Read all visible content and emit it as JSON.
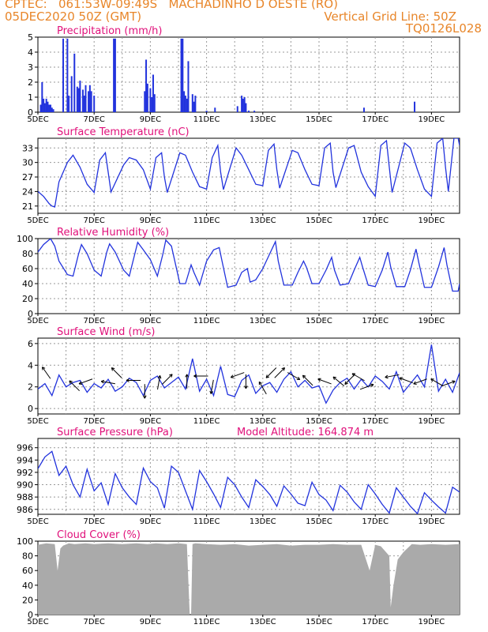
{
  "header": {
    "line1": "CPTEC:   061:53W-09:49S   MACHADINHO D OESTE (RO)",
    "line2": "05DEC2020 50Z (GMT)",
    "grid_note": "Vertical Grid Line: 50Z",
    "model_id": "TQ0126L028",
    "model_altitude": "Model Altitude: 164.874 m"
  },
  "colors": {
    "header": "#e8862a",
    "panel_title": "#e0107a",
    "series": "#2233dd",
    "cloud_fill": "#aaaaaa",
    "grid": "#999999"
  },
  "x_axis": {
    "ticks": [
      "5DEC",
      "7DEC",
      "9DEC",
      "11DEC",
      "13DEC",
      "15DEC",
      "17DEC",
      "19DEC"
    ],
    "day_range": [
      5,
      20
    ]
  },
  "chart_data": [
    {
      "type": "bar",
      "title": "Precipitation (mm/h)",
      "ylim": [
        0,
        5
      ],
      "yticks": [
        "0",
        "1",
        "2",
        "3",
        "4",
        "5"
      ],
      "x_days": [
        5.1,
        5.15,
        5.2,
        5.25,
        5.3,
        5.35,
        5.4,
        5.45,
        5.5,
        5.55,
        5.9,
        6.05,
        6.1,
        6.2,
        6.3,
        6.4,
        6.45,
        6.5,
        6.6,
        6.65,
        6.7,
        6.8,
        6.85,
        6.9,
        7.0,
        7.7,
        7.75,
        8.8,
        8.85,
        8.9,
        9.0,
        9.05,
        9.1,
        9.15,
        10.1,
        10.15,
        10.2,
        10.25,
        10.3,
        10.35,
        10.5,
        10.55,
        10.6,
        11.0,
        11.3,
        12.1,
        12.25,
        12.3,
        12.35,
        12.4,
        12.5,
        12.7,
        16.6,
        18.4
      ],
      "values": [
        0.5,
        2.0,
        0.9,
        0.6,
        0.9,
        0.7,
        0.5,
        0.5,
        0.3,
        0.2,
        4.9,
        4.9,
        1.1,
        2.4,
        3.9,
        1.7,
        1.6,
        2.1,
        1.5,
        1.1,
        1.8,
        1.4,
        1.8,
        1.4,
        1.1,
        4.9,
        4.9,
        1.4,
        3.5,
        1.9,
        1.6,
        1.0,
        2.5,
        1.2,
        4.9,
        4.9,
        1.4,
        1.1,
        0.9,
        3.4,
        1.2,
        0.7,
        1.1,
        0.1,
        0.3,
        0.4,
        1.1,
        0.9,
        1.0,
        0.6,
        0.1,
        0.1,
        0.3,
        0.7
      ]
    },
    {
      "type": "line",
      "title": "Surface Temperature (nC)",
      "ylim": [
        19.5,
        35
      ],
      "yticks": [
        "21",
        "24",
        "27",
        "30",
        "33"
      ],
      "x_days": [
        5.0,
        5.2,
        5.4,
        5.5,
        5.6,
        5.75,
        6.05,
        6.25,
        6.5,
        6.75,
        7.0,
        7.2,
        7.4,
        7.5,
        7.6,
        8.05,
        8.25,
        8.5,
        8.75,
        9.0,
        9.2,
        9.4,
        9.5,
        9.6,
        10.05,
        10.25,
        10.5,
        10.75,
        11.0,
        11.2,
        11.4,
        11.5,
        11.6,
        12.05,
        12.25,
        12.5,
        12.75,
        13.0,
        13.2,
        13.4,
        13.5,
        13.6,
        14.05,
        14.25,
        14.5,
        14.75,
        15.0,
        15.2,
        15.4,
        15.5,
        15.6,
        16.05,
        16.25,
        16.5,
        16.75,
        17.0,
        17.2,
        17.4,
        17.5,
        17.6,
        18.05,
        18.25,
        18.5,
        18.75,
        19.0,
        19.2,
        19.4,
        19.5,
        19.6,
        19.8,
        19.95,
        20.0
      ],
      "values": [
        24.0,
        23.0,
        21.5,
        21.0,
        20.8,
        26.0,
        30.0,
        31.5,
        29.0,
        25.5,
        23.8,
        30.5,
        32.0,
        28.0,
        23.9,
        29.5,
        31.0,
        30.5,
        28.5,
        24.5,
        31.0,
        32.0,
        27.0,
        23.8,
        32.0,
        31.5,
        28.0,
        25.0,
        24.5,
        31.0,
        33.5,
        28.0,
        24.4,
        33.0,
        31.5,
        28.5,
        25.5,
        25.2,
        32.5,
        33.8,
        28.5,
        24.7,
        32.5,
        32.0,
        28.5,
        25.5,
        25.2,
        33.0,
        34.0,
        28.0,
        24.8,
        33.0,
        33.5,
        28.0,
        25.0,
        23.0,
        33.5,
        34.5,
        29.0,
        23.8,
        34.0,
        33.0,
        28.5,
        24.5,
        23.0,
        34.0,
        35.0,
        29.0,
        24.0,
        35.0,
        35.0,
        33.5
      ]
    },
    {
      "type": "line",
      "title": "Relative Humidity (%)",
      "ylim": [
        0,
        100
      ],
      "yticks": [
        "0",
        "20",
        "40",
        "60",
        "80",
        "100"
      ],
      "x_days": [
        5.0,
        5.2,
        5.45,
        5.6,
        5.75,
        6.05,
        6.25,
        6.45,
        6.55,
        6.75,
        7.0,
        7.25,
        7.45,
        7.55,
        7.75,
        8.05,
        8.25,
        8.45,
        8.55,
        8.75,
        9.0,
        9.25,
        9.45,
        9.55,
        9.75,
        10.05,
        10.25,
        10.45,
        10.55,
        10.75,
        11.0,
        11.25,
        11.45,
        11.55,
        11.75,
        12.05,
        12.25,
        12.45,
        12.55,
        12.75,
        13.0,
        13.25,
        13.45,
        13.55,
        13.75,
        14.05,
        14.25,
        14.45,
        14.55,
        14.75,
        15.0,
        15.25,
        15.45,
        15.55,
        15.75,
        16.05,
        16.25,
        16.45,
        16.55,
        16.75,
        17.0,
        17.25,
        17.45,
        17.55,
        17.75,
        18.05,
        18.25,
        18.45,
        18.55,
        18.75,
        19.0,
        19.25,
        19.45,
        19.55,
        19.75,
        19.95,
        20.0
      ],
      "values": [
        82,
        92,
        100,
        90,
        70,
        52,
        50,
        80,
        92,
        80,
        58,
        50,
        82,
        93,
        82,
        58,
        50,
        80,
        95,
        85,
        72,
        50,
        80,
        98,
        90,
        40,
        40,
        65,
        55,
        38,
        70,
        85,
        88,
        70,
        35,
        38,
        55,
        60,
        42,
        45,
        60,
        80,
        96,
        70,
        38,
        38,
        55,
        70,
        62,
        40,
        40,
        58,
        75,
        58,
        38,
        40,
        58,
        75,
        62,
        38,
        36,
        58,
        82,
        62,
        36,
        36,
        58,
        86,
        68,
        35,
        35,
        62,
        88,
        65,
        30,
        30,
        40
      ]
    },
    {
      "type": "line",
      "title": "Surface Wind (m/s)",
      "ylim": [
        -0.5,
        6.5
      ],
      "yticks": [
        "0",
        "2",
        "4",
        "6"
      ],
      "x_days": [
        5.0,
        5.25,
        5.5,
        5.75,
        6.0,
        6.25,
        6.5,
        6.75,
        7.0,
        7.25,
        7.5,
        7.75,
        8.0,
        8.25,
        8.5,
        8.75,
        9.0,
        9.25,
        9.5,
        9.75,
        10.0,
        10.25,
        10.5,
        10.75,
        11.0,
        11.25,
        11.5,
        11.75,
        12.0,
        12.25,
        12.5,
        12.75,
        13.0,
        13.25,
        13.5,
        13.75,
        14.0,
        14.25,
        14.5,
        14.75,
        15.0,
        15.25,
        15.5,
        15.75,
        16.0,
        16.25,
        16.5,
        16.75,
        17.0,
        17.25,
        17.5,
        17.75,
        18.0,
        18.25,
        18.5,
        18.75,
        19.0,
        19.25,
        19.5,
        19.75,
        20.0
      ],
      "values": [
        1.8,
        2.3,
        1.2,
        3.1,
        2.0,
        2.4,
        2.6,
        1.5,
        2.3,
        1.9,
        2.7,
        1.6,
        2.0,
        2.8,
        2.4,
        1.2,
        2.6,
        3.0,
        1.9,
        2.4,
        2.9,
        1.8,
        4.6,
        1.6,
        2.7,
        1.2,
        3.9,
        1.3,
        1.1,
        2.6,
        3.1,
        1.4,
        2.1,
        2.4,
        1.5,
        2.7,
        3.4,
        2.0,
        2.6,
        1.9,
        2.1,
        0.5,
        1.7,
        2.4,
        2.8,
        1.8,
        2.7,
        2.0,
        3.0,
        2.5,
        1.8,
        3.4,
        1.5,
        2.3,
        3.1,
        2.0,
        5.9,
        1.6,
        2.7,
        1.5,
        3.3
      ],
      "arrows": [
        {
          "day": 5.3,
          "speed": 3.3,
          "dir": 125
        },
        {
          "day": 6.3,
          "speed": 2.1,
          "dir": 135
        },
        {
          "day": 6.7,
          "speed": 2.5,
          "dir": 200
        },
        {
          "day": 7.5,
          "speed": 2.4,
          "dir": 170
        },
        {
          "day": 7.8,
          "speed": 3.3,
          "dir": 135
        },
        {
          "day": 8.4,
          "speed": 2.6,
          "dir": 180
        },
        {
          "day": 8.8,
          "speed": 1.6,
          "dir": 270
        },
        {
          "day": 9.3,
          "speed": 2.4,
          "dir": 80
        },
        {
          "day": 9.6,
          "speed": 2.7,
          "dir": 45
        },
        {
          "day": 10.3,
          "speed": 2.5,
          "dir": 90
        },
        {
          "day": 10.8,
          "speed": 3.0,
          "dir": 180
        },
        {
          "day": 11.2,
          "speed": 2.0,
          "dir": 260
        },
        {
          "day": 12.1,
          "speed": 3.1,
          "dir": 200
        },
        {
          "day": 12.4,
          "speed": 2.5,
          "dir": 270
        },
        {
          "day": 13.0,
          "speed": 1.9,
          "dir": 120
        },
        {
          "day": 13.3,
          "speed": 3.3,
          "dir": 225
        },
        {
          "day": 13.6,
          "speed": 3.3,
          "dir": 45
        },
        {
          "day": 14.1,
          "speed": 3.0,
          "dir": 330
        },
        {
          "day": 14.6,
          "speed": 2.6,
          "dir": 135
        },
        {
          "day": 15.2,
          "speed": 2.5,
          "dir": 160
        },
        {
          "day": 15.7,
          "speed": 2.5,
          "dir": 140
        },
        {
          "day": 16.1,
          "speed": 2.7,
          "dir": 225
        },
        {
          "day": 16.4,
          "speed": 2.9,
          "dir": 150
        },
        {
          "day": 16.7,
          "speed": 2.0,
          "dir": 20
        },
        {
          "day": 17.6,
          "speed": 3.0,
          "dir": 190
        },
        {
          "day": 18.1,
          "speed": 2.6,
          "dir": 160
        },
        {
          "day": 18.6,
          "speed": 2.5,
          "dir": 200
        },
        {
          "day": 19.2,
          "speed": 2.4,
          "dir": 150
        },
        {
          "day": 19.6,
          "speed": 2.3,
          "dir": 20
        }
      ]
    },
    {
      "type": "line",
      "title": "Surface Pressure (hPa)",
      "ylim": [
        985.2,
        997.5
      ],
      "yticks": [
        "986",
        "988",
        "990",
        "992",
        "994",
        "996"
      ],
      "x_days": [
        5.0,
        5.25,
        5.5,
        5.75,
        6.0,
        6.25,
        6.5,
        6.75,
        7.0,
        7.25,
        7.5,
        7.75,
        8.0,
        8.25,
        8.5,
        8.75,
        9.0,
        9.25,
        9.5,
        9.75,
        10.0,
        10.25,
        10.5,
        10.75,
        11.0,
        11.25,
        11.5,
        11.75,
        12.0,
        12.25,
        12.5,
        12.75,
        13.0,
        13.25,
        13.5,
        13.75,
        14.0,
        14.25,
        14.5,
        14.75,
        15.0,
        15.25,
        15.5,
        15.75,
        16.0,
        16.25,
        16.5,
        16.75,
        17.0,
        17.25,
        17.5,
        17.75,
        18.0,
        18.25,
        18.5,
        18.75,
        19.0,
        19.25,
        19.5,
        19.75,
        20.0
      ],
      "values": [
        992.6,
        994.5,
        995.4,
        991.5,
        993.0,
        990.0,
        988.0,
        992.5,
        989.0,
        990.3,
        986.8,
        991.8,
        989.5,
        988.0,
        986.8,
        992.7,
        990.5,
        989.5,
        986.2,
        993.0,
        992.0,
        989.0,
        986.0,
        992.3,
        990.5,
        988.5,
        986.3,
        991.2,
        990.0,
        988.0,
        986.3,
        990.8,
        989.7,
        988.4,
        986.5,
        989.8,
        988.5,
        987.0,
        986.6,
        990.4,
        988.4,
        987.5,
        985.8,
        989.9,
        988.8,
        987.2,
        986.0,
        990.0,
        988.5,
        986.8,
        985.4,
        989.5,
        988.0,
        986.5,
        985.3,
        988.7,
        987.5,
        986.4,
        985.4,
        989.6,
        988.8
      ]
    },
    {
      "type": "area",
      "title": "Cloud Cover (%)",
      "ylim": [
        0,
        100
      ],
      "yticks": [
        "0",
        "20",
        "40",
        "60",
        "80",
        "100"
      ],
      "x_days": [
        5.0,
        5.3,
        5.6,
        5.7,
        5.8,
        5.9,
        6.1,
        6.3,
        6.7,
        7.0,
        7.5,
        8.0,
        8.5,
        8.9,
        9.2,
        9.6,
        10.0,
        10.3,
        10.4,
        10.45,
        10.5,
        10.6,
        11.0,
        11.5,
        12.0,
        12.5,
        13.0,
        13.5,
        14.0,
        14.5,
        15.0,
        15.5,
        16.0,
        16.5,
        16.8,
        17.0,
        17.2,
        17.5,
        17.55,
        17.65,
        17.8,
        18.0,
        18.3,
        18.6,
        19.0,
        19.5,
        20.0
      ],
      "values": [
        95,
        97,
        96,
        60,
        90,
        94,
        97,
        96,
        97,
        96,
        97,
        96,
        97,
        96,
        97,
        96,
        97,
        96,
        0,
        0,
        96,
        97,
        96,
        95,
        96,
        94,
        95,
        96,
        94,
        95,
        95,
        96,
        95,
        95,
        60,
        95,
        93,
        80,
        10,
        40,
        75,
        85,
        96,
        95,
        96,
        95,
        96
      ]
    }
  ]
}
